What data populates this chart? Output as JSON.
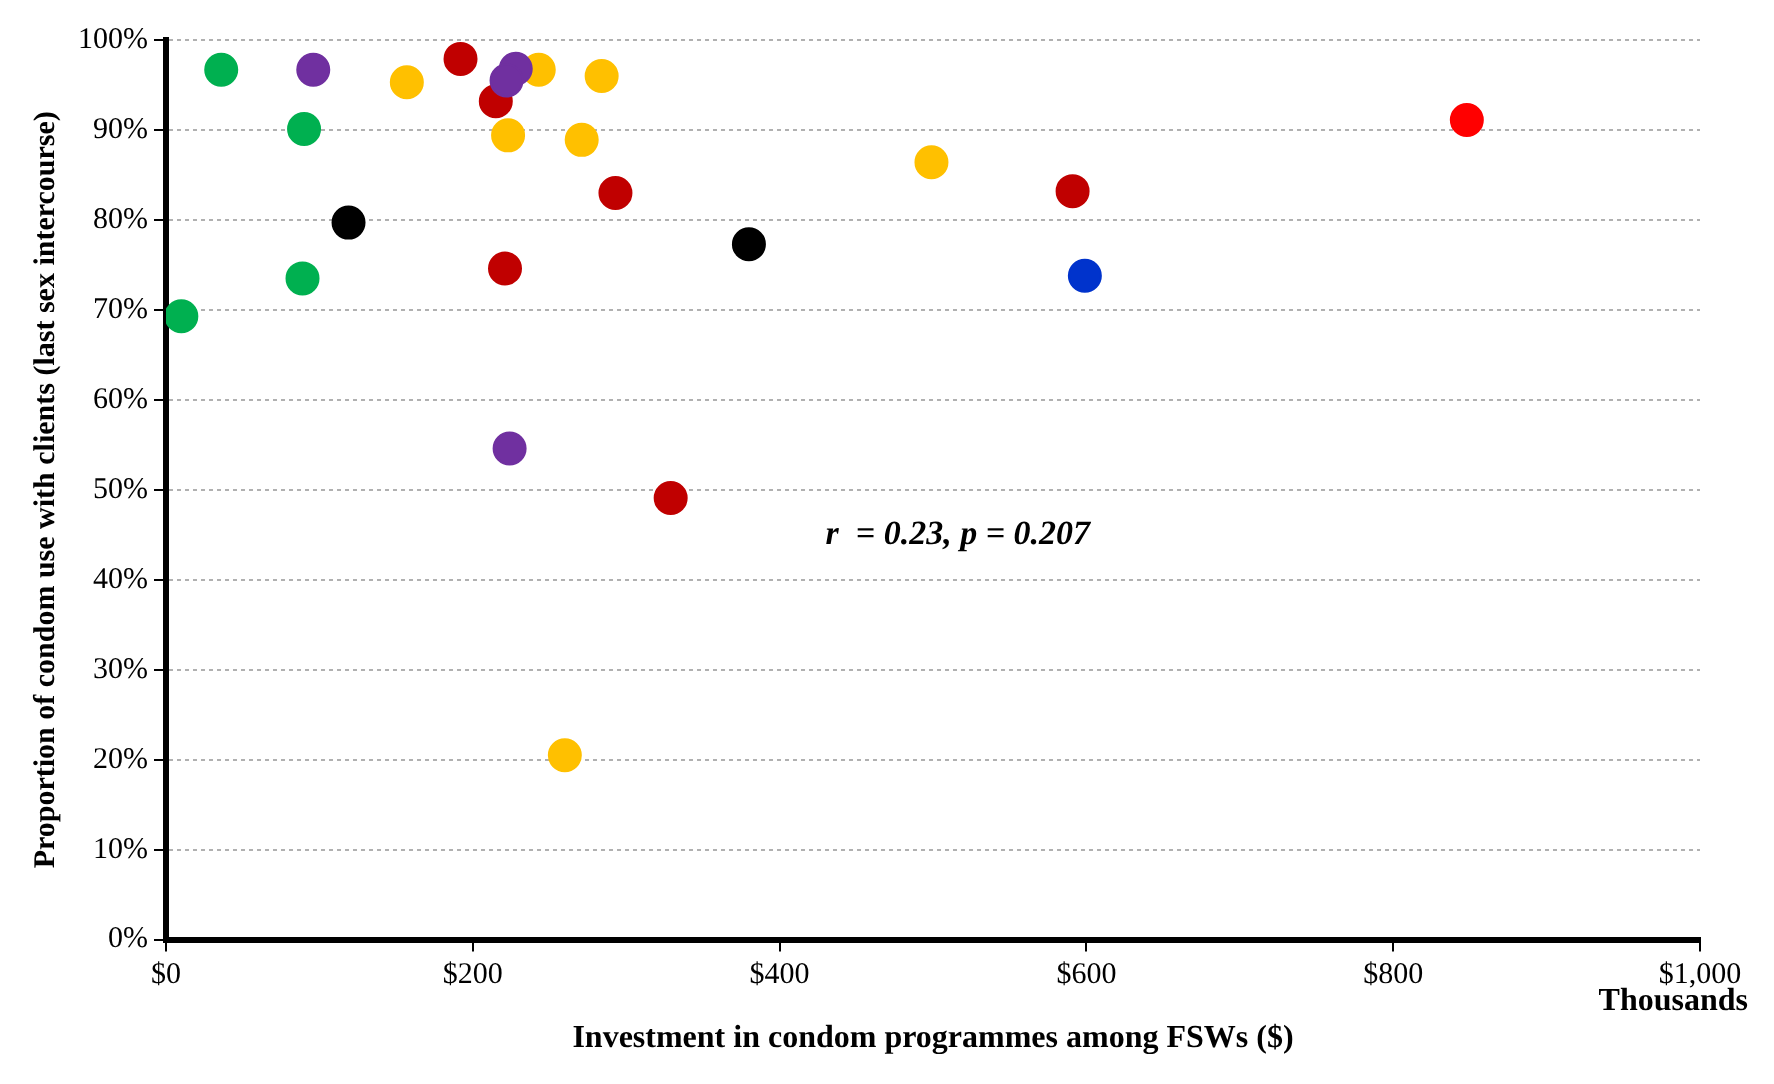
{
  "chart_data": {
    "type": "scatter",
    "xlabel": "Investment in condom programmes among FSWs ($)",
    "ylabel": "Proportion of condom use with clients (last sex intercourse)",
    "annotations": [
      "r  = 0.23, p = 0.207",
      "Thousands"
    ],
    "xlim": [
      0,
      1000
    ],
    "xticks": [
      {
        "value": 0,
        "label": "$0"
      },
      {
        "value": 200,
        "label": "$200"
      },
      {
        "value": 400,
        "label": "$400"
      },
      {
        "value": 600,
        "label": "$600"
      },
      {
        "value": 800,
        "label": "$800"
      },
      {
        "value": 1000,
        "label": "$1,000"
      }
    ],
    "ylim": [
      0,
      100
    ],
    "yticks": [
      {
        "value": 0,
        "label": "0%"
      },
      {
        "value": 10,
        "label": "10%"
      },
      {
        "value": 20,
        "label": "20%"
      },
      {
        "value": 30,
        "label": "30%"
      },
      {
        "value": 40,
        "label": "40%"
      },
      {
        "value": 50,
        "label": "50%"
      },
      {
        "value": 60,
        "label": "60%"
      },
      {
        "value": 70,
        "label": "70%"
      },
      {
        "value": 80,
        "label": "80%"
      },
      {
        "value": 90,
        "label": "90%"
      },
      {
        "value": 100,
        "label": "100%"
      }
    ],
    "grid": "y",
    "legend": false,
    "marker": "circle",
    "series": [
      {
        "color": "#00b050",
        "x": [
          36,
          90,
          89,
          10
        ],
        "values": [
          96.7,
          90.1,
          73.5,
          69.3
        ]
      },
      {
        "color": "#7030a0",
        "x": [
          96,
          228,
          222,
          224
        ],
        "values": [
          96.7,
          96.8,
          95.5,
          54.6
        ]
      },
      {
        "color": "#ffc000",
        "x": [
          157,
          243,
          284,
          223,
          271,
          260,
          499
        ],
        "values": [
          95.3,
          96.7,
          96.0,
          89.4,
          88.9,
          20.5,
          86.4
        ]
      },
      {
        "color": "#c00000",
        "x": [
          192,
          215,
          293,
          221,
          329,
          591
        ],
        "values": [
          97.9,
          93.2,
          83.0,
          74.6,
          49.1,
          83.2
        ]
      },
      {
        "color": "#000000",
        "x": [
          119,
          380
        ],
        "values": [
          79.7,
          77.3
        ]
      },
      {
        "color": "#0033cc",
        "x": [
          599
        ],
        "values": [
          73.8
        ]
      },
      {
        "color": "#ff0000",
        "x": [
          848
        ],
        "values": [
          91.1
        ]
      }
    ]
  }
}
